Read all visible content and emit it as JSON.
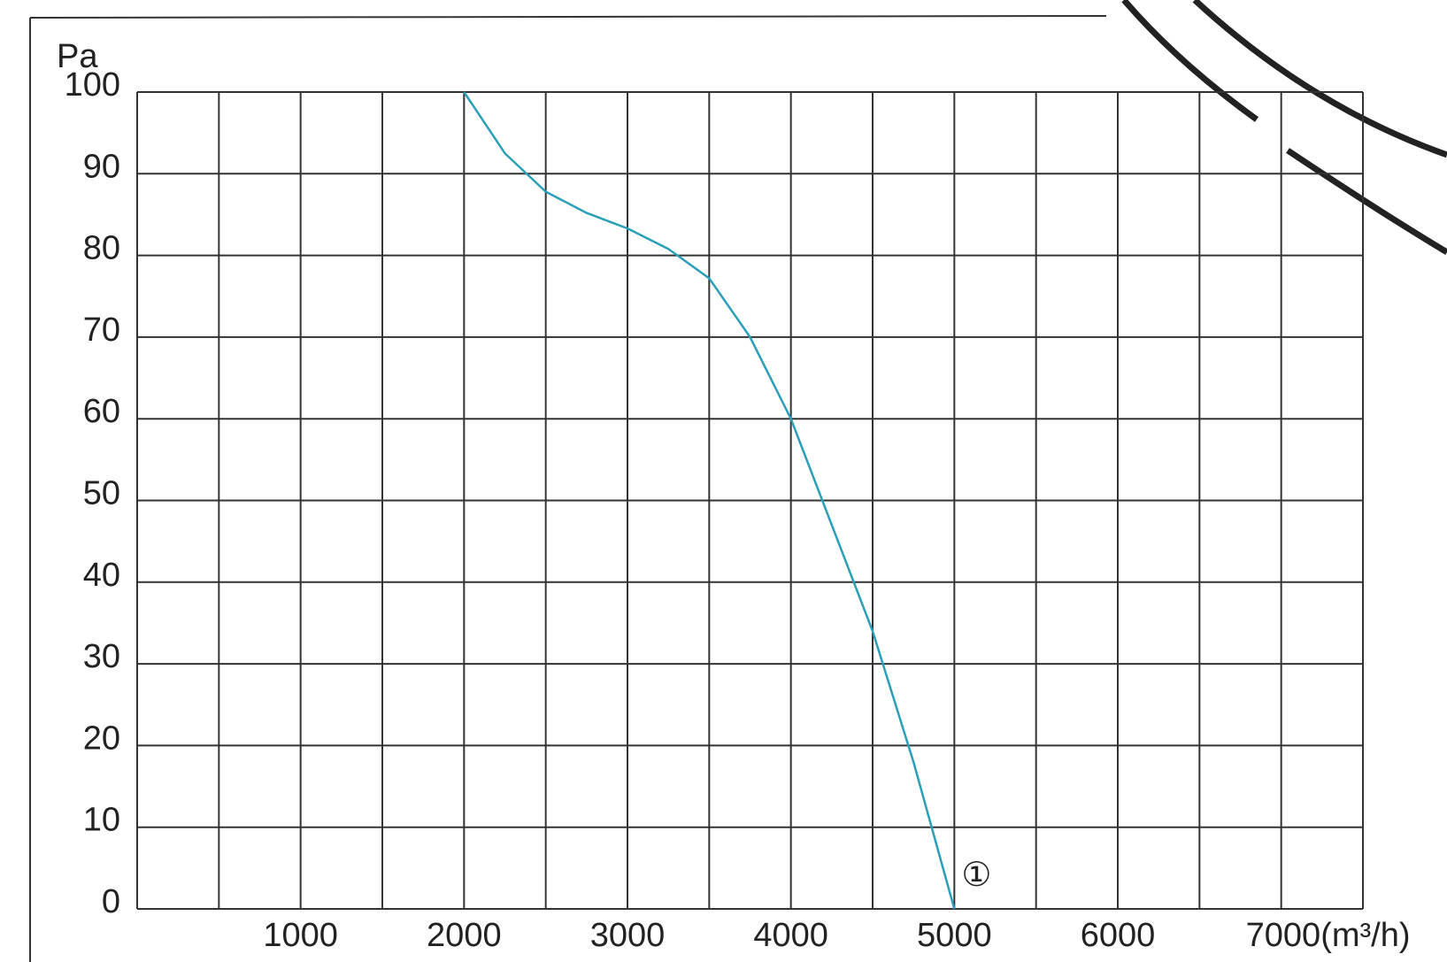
{
  "chart_data": {
    "type": "line",
    "ylabel": "Pa",
    "x": [
      2000,
      2250,
      2500,
      2750,
      3000,
      3250,
      3500,
      3750,
      4000,
      4250,
      4500,
      4750,
      5000
    ],
    "series": [
      {
        "color": "#2a9fb8",
        "values": [
          100,
          92.5,
          87.8,
          85.2,
          83.3,
          80.8,
          77.2,
          70,
          60,
          47,
          34,
          18,
          0
        ]
      }
    ],
    "xlim": [
      0,
      7500
    ],
    "ylim": [
      0,
      100
    ],
    "xticks": [
      1000,
      2000,
      3000,
      4000,
      5000,
      6000,
      {
        "value": 7000,
        "label": "7000(m³/h)"
      }
    ],
    "xgrid": [
      500,
      1500,
      2500,
      3500,
      4500,
      5500,
      6500,
      7500
    ],
    "yticks": [
      0,
      10,
      20,
      30,
      40,
      50,
      60,
      70,
      80,
      90,
      100
    ],
    "annotation": {
      "text": "①",
      "x": 5000,
      "y": 0
    },
    "grid": true
  }
}
